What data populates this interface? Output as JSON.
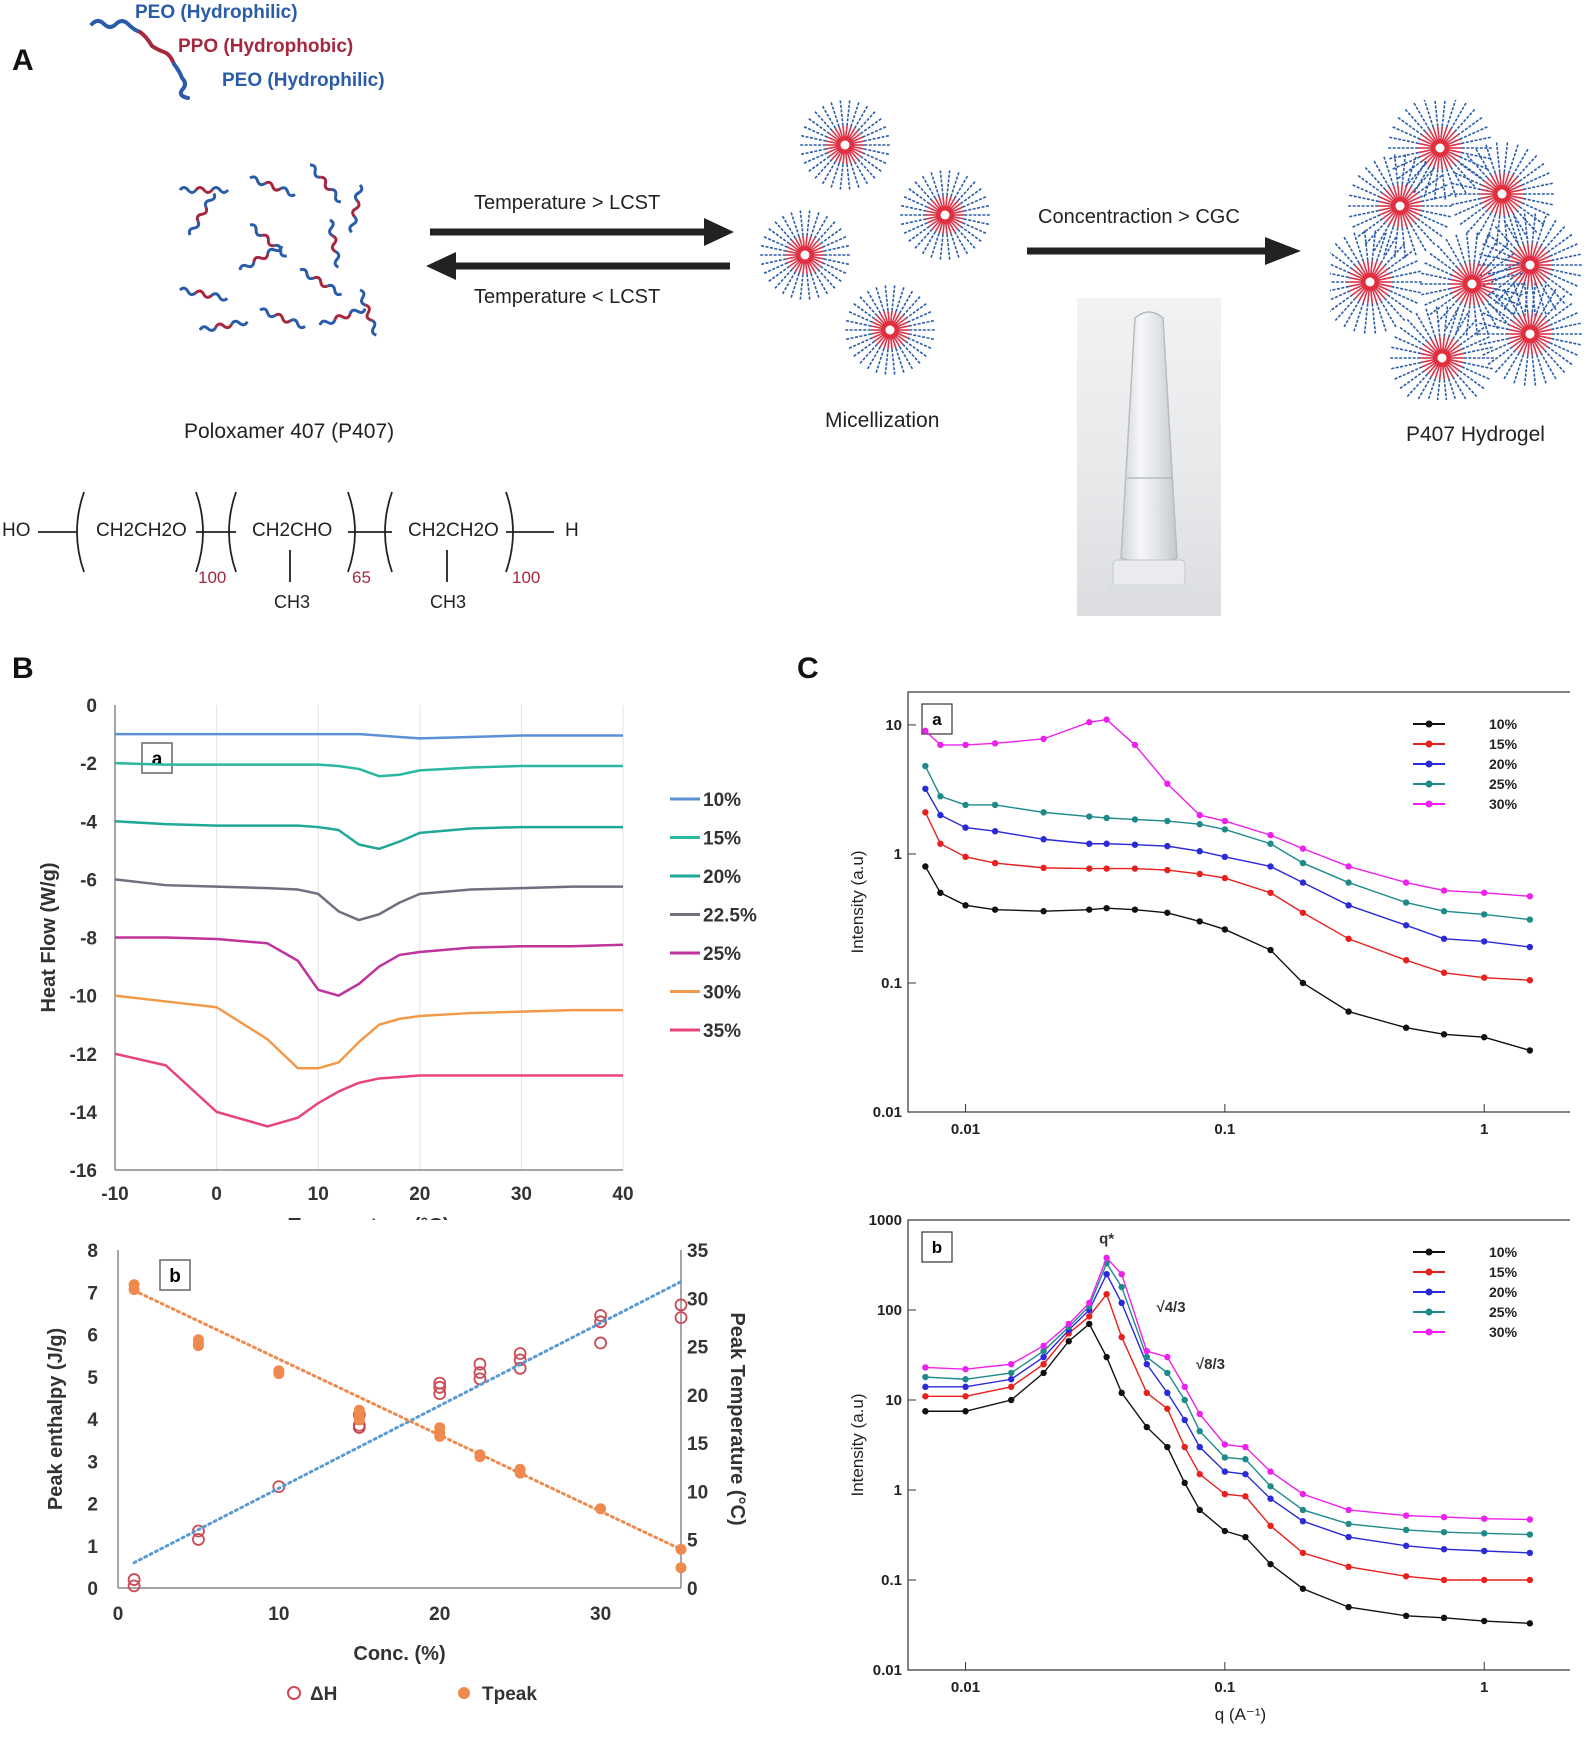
{
  "panels": {
    "A": "A",
    "B": "B",
    "C": "C"
  },
  "panelA": {
    "chain_labels": {
      "peo_top": "PEO (Hydrophilic)",
      "ppo": "PPO (Hydrophobic)",
      "peo_bottom": "PEO (Hydrophilic)"
    },
    "arrow_forward": "Temperature > LCST",
    "arrow_back": "Temperature < LCST",
    "arrow_cgc": "Concentraction > CGC",
    "caption_p407": "Poloxamer 407 (P407)",
    "caption_micelle": "Micellization",
    "caption_hydrogel": "P407 Hydrogel",
    "formula": {
      "ho": "HO",
      "h": "H",
      "peo1": "CH2CH2O",
      "ppo": "CH2CHO",
      "peo2": "CH2CH2O",
      "ch3": "CH3",
      "n1": "100",
      "n2": "65",
      "n3": "100"
    }
  },
  "colors": {
    "peo": "#2a5caa",
    "ppo": "#a6283e",
    "dot_orange": "#ee8a4e",
    "dot_blue": "#5b9bd5"
  },
  "chart_data": [
    {
      "id": "B-a",
      "type": "line",
      "sublabel": "a",
      "xlabel": "Temperature (°C)",
      "ylabel": "Heat Flow (W/g)",
      "xlim": [
        -10,
        40
      ],
      "ylim": [
        -16,
        0
      ],
      "xticks": [
        -10,
        0,
        10,
        20,
        30,
        40
      ],
      "yticks": [
        0,
        -2,
        -4,
        -6,
        -8,
        -10,
        -12,
        -14,
        -16
      ],
      "grid": true,
      "legend": "right",
      "x": [
        -10,
        -5,
        0,
        5,
        8,
        10,
        12,
        14,
        16,
        18,
        20,
        25,
        30,
        35,
        40
      ],
      "series": [
        {
          "name": "10%",
          "color": "#5b8fd6",
          "values": [
            -1.0,
            -1.0,
            -1.0,
            -1.0,
            -1.0,
            -1.0,
            -1.0,
            -1.0,
            -1.05,
            -1.1,
            -1.15,
            -1.1,
            -1.05,
            -1.05,
            -1.05
          ]
        },
        {
          "name": "15%",
          "color": "#2ab8a0",
          "values": [
            -2.0,
            -2.05,
            -2.05,
            -2.05,
            -2.05,
            -2.05,
            -2.1,
            -2.2,
            -2.45,
            -2.4,
            -2.25,
            -2.15,
            -2.1,
            -2.1,
            -2.1
          ]
        },
        {
          "name": "20%",
          "color": "#1fa898",
          "values": [
            -4.0,
            -4.1,
            -4.15,
            -4.15,
            -4.15,
            -4.2,
            -4.3,
            -4.8,
            -4.95,
            -4.7,
            -4.4,
            -4.25,
            -4.2,
            -4.2,
            -4.2
          ]
        },
        {
          "name": "22.5%",
          "color": "#6e6f7f",
          "values": [
            -6.0,
            -6.2,
            -6.25,
            -6.3,
            -6.35,
            -6.5,
            -7.1,
            -7.4,
            -7.2,
            -6.8,
            -6.5,
            -6.35,
            -6.3,
            -6.25,
            -6.25
          ]
        },
        {
          "name": "25%",
          "color": "#c0329c",
          "values": [
            -8.0,
            -8.0,
            -8.05,
            -8.2,
            -8.8,
            -9.8,
            -10.0,
            -9.6,
            -9.0,
            -8.6,
            -8.5,
            -8.35,
            -8.3,
            -8.3,
            -8.25
          ]
        },
        {
          "name": "30%",
          "color": "#f39a4a",
          "values": [
            -10.0,
            -10.2,
            -10.4,
            -11.5,
            -12.5,
            -12.5,
            -12.3,
            -11.6,
            -11.0,
            -10.8,
            -10.7,
            -10.6,
            -10.55,
            -10.5,
            -10.5
          ]
        },
        {
          "name": "35%",
          "color": "#e8437c",
          "values": [
            -12.0,
            -12.4,
            -14.0,
            -14.5,
            -14.2,
            -13.7,
            -13.3,
            -13.0,
            -12.85,
            -12.8,
            -12.75,
            -12.75,
            -12.75,
            -12.75,
            -12.75
          ]
        }
      ]
    },
    {
      "id": "B-b",
      "type": "scatter",
      "sublabel": "b",
      "xlabel": "Conc. (%)",
      "ylabel": "Peak enthalpy (J/g)",
      "y2label": "Peak Temperature (°C)",
      "xlim": [
        0,
        35
      ],
      "ylim": [
        0,
        8
      ],
      "y2lim": [
        0,
        35
      ],
      "xticks": [
        0,
        10,
        20,
        30
      ],
      "yticks": [
        0,
        1,
        2,
        3,
        4,
        5,
        6,
        7,
        8
      ],
      "y2ticks": [
        0,
        5,
        10,
        15,
        20,
        25,
        30,
        35
      ],
      "legend": "bottom",
      "series": [
        {
          "name": "ΔH",
          "axis": "left",
          "marker": "open-circle",
          "color": "#c94b55",
          "x": [
            1,
            1,
            5,
            5,
            10,
            15,
            15,
            15,
            20,
            20,
            20,
            22.5,
            22.5,
            22.5,
            25,
            25,
            25,
            30,
            30,
            30,
            35,
            35
          ],
          "y": [
            0.2,
            0.05,
            1.35,
            1.15,
            2.4,
            3.8,
            3.85,
            4.1,
            4.6,
            4.75,
            4.85,
            4.95,
            5.1,
            5.3,
            5.2,
            5.4,
            5.55,
            5.8,
            6.3,
            6.45,
            6.4,
            6.7
          ]
        },
        {
          "name": "Tpeak",
          "axis": "right",
          "marker": "filled-circle",
          "color": "#ee8a4e",
          "x": [
            1,
            1,
            5,
            5,
            5,
            10,
            10,
            15,
            15,
            15,
            20,
            20,
            20,
            22.5,
            22.5,
            25,
            25,
            30,
            35,
            35
          ],
          "y": [
            31.4,
            30.9,
            25.7,
            25.3,
            25.1,
            22.5,
            22.2,
            18.4,
            17.9,
            17.4,
            16.6,
            16.1,
            15.7,
            13.8,
            13.6,
            12.3,
            11.9,
            8.2,
            4.0,
            2.1
          ]
        },
        {
          "name": "fit-dH",
          "axis": "left",
          "style": "dotted",
          "color": "#5b9bd5",
          "x": [
            1,
            35
          ],
          "y": [
            0.6,
            7.25
          ]
        },
        {
          "name": "fit-T",
          "axis": "right",
          "style": "dotted",
          "color": "#ee8a4e",
          "x": [
            1,
            35
          ],
          "y": [
            30.8,
            4.0
          ]
        }
      ]
    },
    {
      "id": "C-a",
      "type": "scatter",
      "sublabel": "a",
      "xscale": "log",
      "yscale": "log",
      "xlabel": "",
      "ylabel": "Intensity (a.u)",
      "xlim": [
        0.006,
        2.2
      ],
      "ylim": [
        0.01,
        18
      ],
      "xticks": [
        "0.01",
        "0.1",
        "1"
      ],
      "yticks": [
        "0.01",
        "0.1",
        "1",
        "10"
      ],
      "legend": "top-right",
      "x": [
        0.007,
        0.008,
        0.01,
        0.013,
        0.02,
        0.03,
        0.035,
        0.045,
        0.06,
        0.08,
        0.1,
        0.15,
        0.2,
        0.3,
        0.5,
        0.7,
        1.0,
        1.5
      ],
      "series": [
        {
          "name": "10%",
          "color": "#111111",
          "values": [
            0.8,
            0.5,
            0.4,
            0.37,
            0.36,
            0.37,
            0.38,
            0.37,
            0.35,
            0.3,
            0.26,
            0.18,
            0.1,
            0.06,
            0.045,
            0.04,
            0.038,
            0.03
          ]
        },
        {
          "name": "15%",
          "color": "#e8201e",
          "values": [
            2.1,
            1.2,
            0.95,
            0.85,
            0.78,
            0.77,
            0.77,
            0.77,
            0.75,
            0.7,
            0.65,
            0.5,
            0.35,
            0.22,
            0.15,
            0.12,
            0.11,
            0.105
          ]
        },
        {
          "name": "20%",
          "color": "#2a2ad8",
          "values": [
            3.2,
            2.0,
            1.6,
            1.5,
            1.3,
            1.2,
            1.2,
            1.18,
            1.15,
            1.05,
            0.95,
            0.8,
            0.6,
            0.4,
            0.28,
            0.22,
            0.21,
            0.19
          ]
        },
        {
          "name": "25%",
          "color": "#1f8a8a",
          "values": [
            4.8,
            2.8,
            2.4,
            2.4,
            2.1,
            1.95,
            1.9,
            1.85,
            1.8,
            1.7,
            1.55,
            1.2,
            0.85,
            0.6,
            0.42,
            0.36,
            0.34,
            0.31
          ]
        },
        {
          "name": "30%",
          "color": "#ee20ee",
          "values": [
            9.0,
            7.0,
            7.0,
            7.2,
            7.8,
            10.5,
            11.0,
            7.0,
            3.5,
            2.0,
            1.8,
            1.4,
            1.1,
            0.8,
            0.6,
            0.52,
            0.5,
            0.47
          ]
        }
      ]
    },
    {
      "id": "C-b",
      "type": "scatter",
      "sublabel": "b",
      "xscale": "log",
      "yscale": "log",
      "xlabel": "q (A⁻¹)",
      "ylabel": "Intensity (a.u)",
      "xlim": [
        0.006,
        2.2
      ],
      "ylim": [
        0.01,
        1000
      ],
      "xticks": [
        "0.01",
        "0.1",
        "1"
      ],
      "yticks": [
        "0.01",
        "0.1",
        "1",
        "10",
        "100",
        "1000"
      ],
      "annotations": [
        "q*",
        "√4/3",
        "√8/3"
      ],
      "legend": "top-right",
      "x": [
        0.007,
        0.01,
        0.015,
        0.02,
        0.025,
        0.03,
        0.035,
        0.04,
        0.05,
        0.06,
        0.07,
        0.08,
        0.1,
        0.12,
        0.15,
        0.2,
        0.3,
        0.5,
        0.7,
        1.0,
        1.5
      ],
      "series": [
        {
          "name": "10%",
          "color": "#111111",
          "values": [
            7.5,
            7.5,
            10,
            20,
            45,
            70,
            30,
            12,
            5,
            3,
            1.2,
            0.6,
            0.35,
            0.3,
            0.15,
            0.08,
            0.05,
            0.04,
            0.038,
            0.035,
            0.033
          ]
        },
        {
          "name": "15%",
          "color": "#e8201e",
          "values": [
            11,
            11,
            14,
            25,
            55,
            85,
            150,
            50,
            12,
            8,
            3,
            1.5,
            0.9,
            0.85,
            0.4,
            0.2,
            0.14,
            0.11,
            0.1,
            0.1,
            0.1
          ]
        },
        {
          "name": "20%",
          "color": "#2a2ad8",
          "values": [
            14,
            14,
            17,
            30,
            60,
            100,
            250,
            120,
            25,
            12,
            6,
            3,
            1.6,
            1.5,
            0.8,
            0.45,
            0.3,
            0.24,
            0.22,
            0.21,
            0.2
          ]
        },
        {
          "name": "25%",
          "color": "#1f8a8a",
          "values": [
            18,
            17,
            20,
            35,
            65,
            110,
            330,
            180,
            30,
            20,
            10,
            4.5,
            2.3,
            2.2,
            1.1,
            0.6,
            0.42,
            0.36,
            0.34,
            0.33,
            0.32
          ]
        },
        {
          "name": "30%",
          "color": "#ee20ee",
          "values": [
            23,
            22,
            25,
            40,
            70,
            120,
            380,
            250,
            35,
            30,
            14,
            7,
            3.2,
            3.0,
            1.6,
            0.9,
            0.6,
            0.52,
            0.5,
            0.48,
            0.47
          ]
        }
      ]
    }
  ]
}
